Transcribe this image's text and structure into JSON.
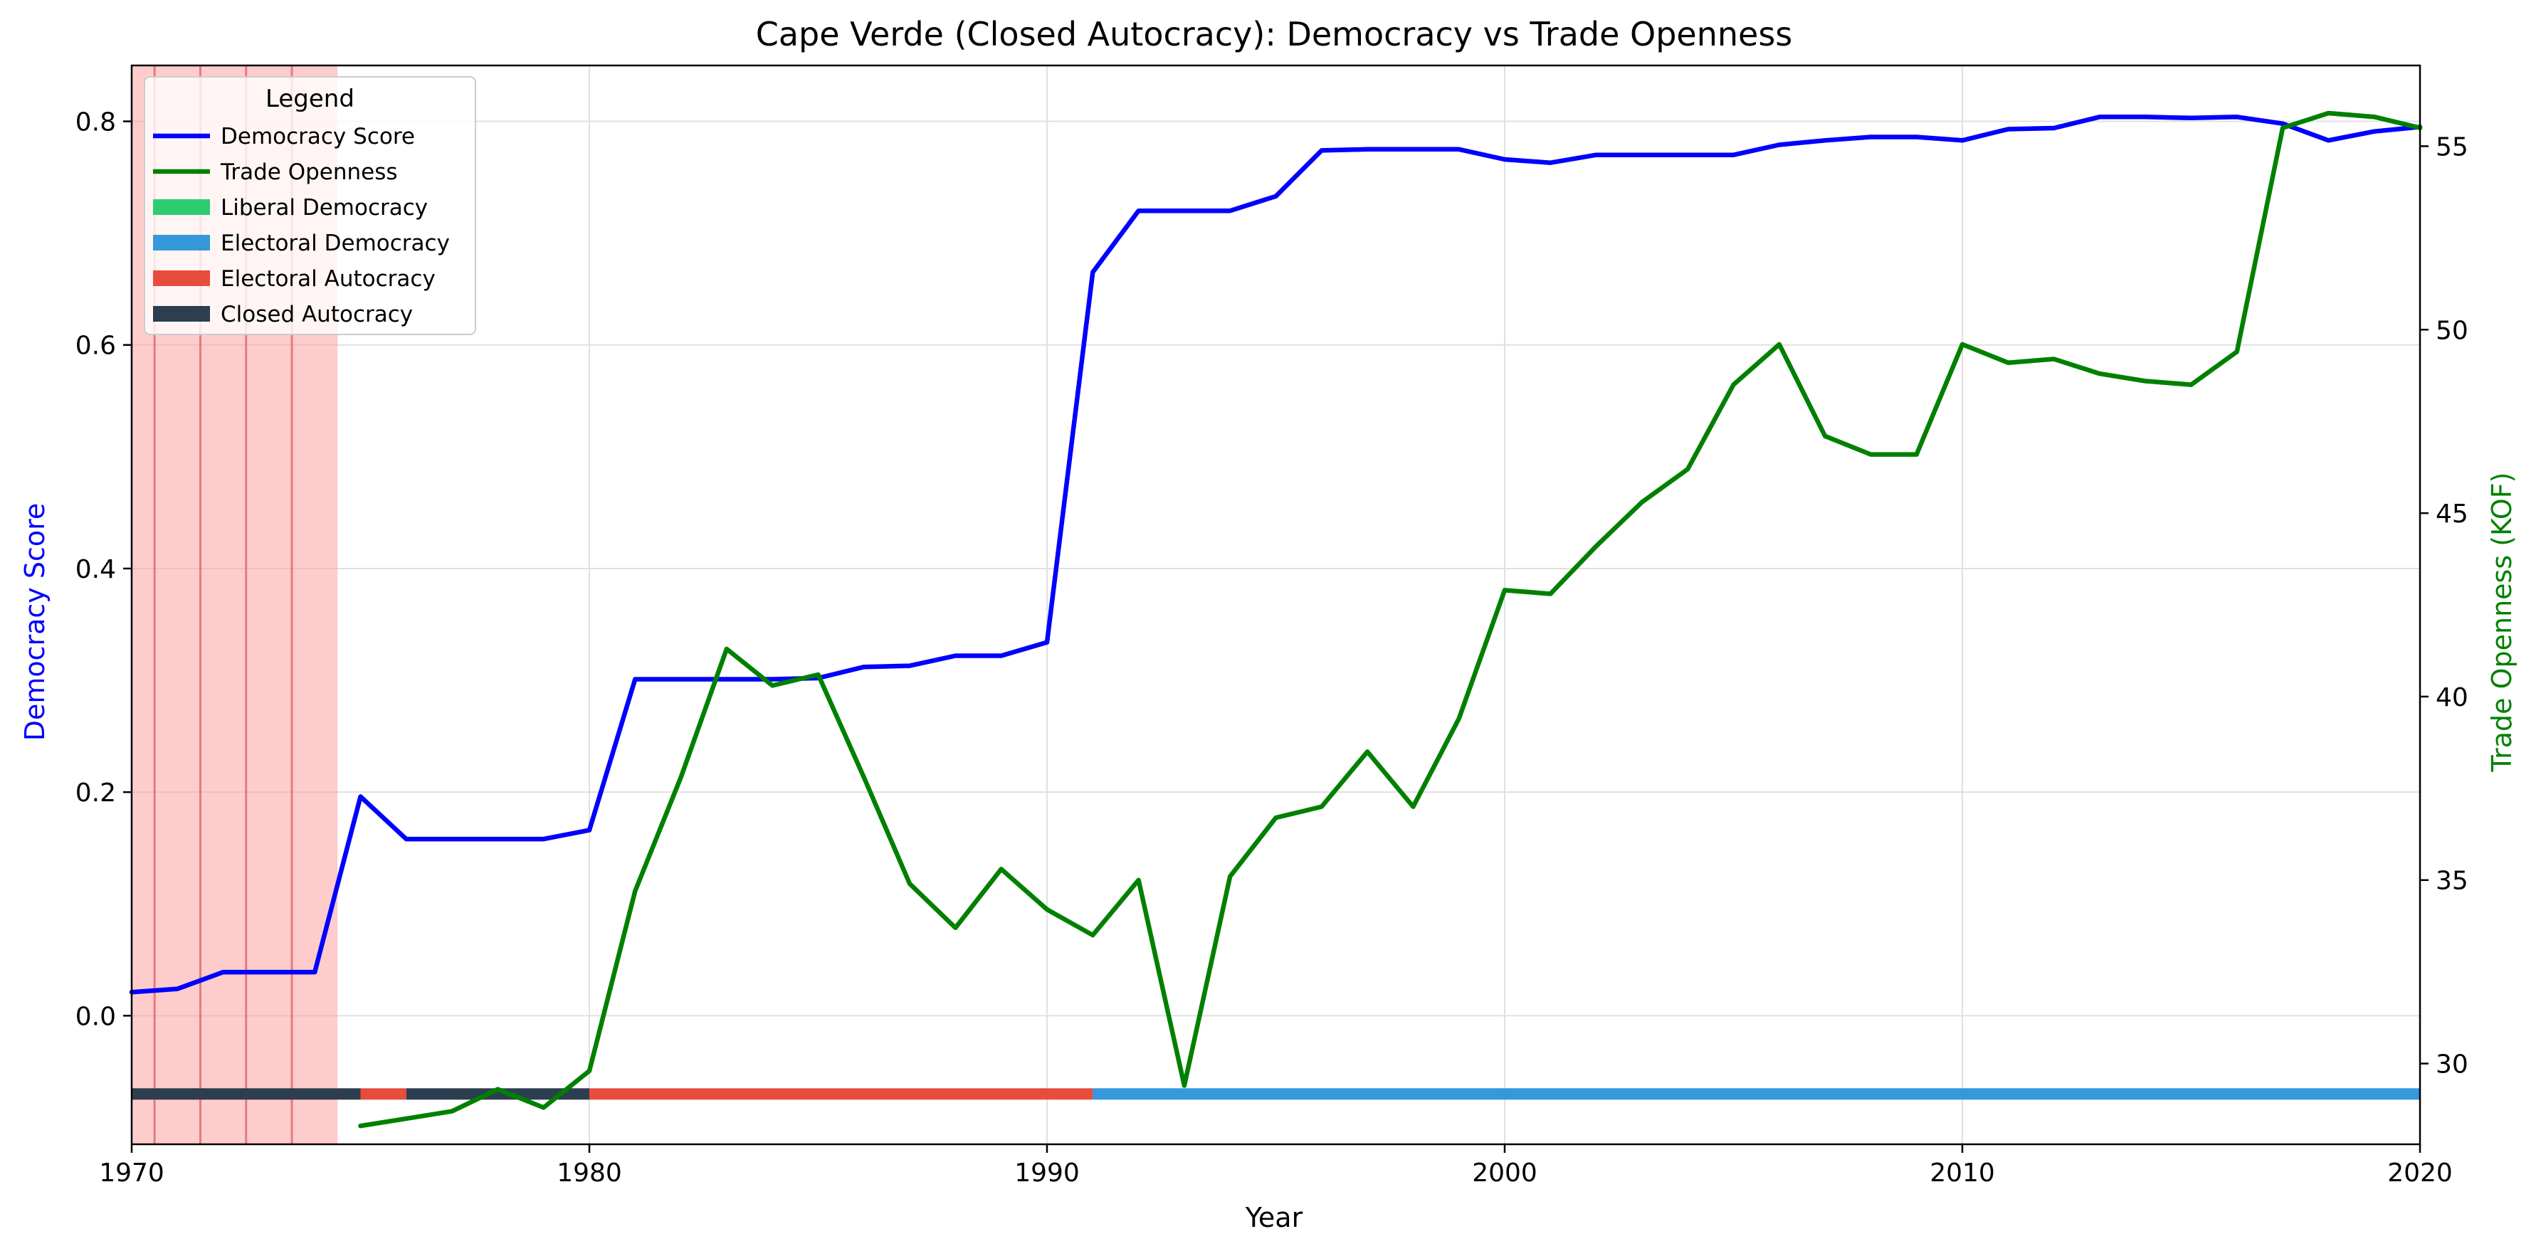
{
  "chart_data": {
    "type": "line",
    "title": "Cape Verde (Closed Autocracy): Democracy vs Trade Openness",
    "xlabel": "Year",
    "ylabel_left": "Democracy Score",
    "ylabel_right": "Trade Openness (KOF)",
    "xlim": [
      1970,
      2020
    ],
    "ylim_left": [
      -0.115,
      0.85
    ],
    "ylim_right": [
      27.8,
      57.2
    ],
    "x_ticks": [
      1970,
      1980,
      1990,
      2000,
      2010,
      2020
    ],
    "y_ticks_left": [
      "0.0",
      "0.2",
      "0.4",
      "0.6",
      "0.8"
    ],
    "y_ticks_left_values": [
      0.0,
      0.2,
      0.4,
      0.6,
      0.8
    ],
    "y_ticks_right": [
      "30",
      "35",
      "40",
      "45",
      "50",
      "55"
    ],
    "y_ticks_right_values": [
      30,
      35,
      40,
      45,
      50,
      55
    ],
    "grid": true,
    "legend_position": "top-left",
    "legend_title": "Legend",
    "series": [
      {
        "name": "Democracy Score",
        "axis": "left",
        "color": "#0000ff",
        "x": [
          1970,
          1971,
          1972,
          1973,
          1974,
          1975,
          1976,
          1977,
          1978,
          1979,
          1980,
          1981,
          1982,
          1983,
          1984,
          1985,
          1986,
          1987,
          1988,
          1989,
          1990,
          1991,
          1992,
          1993,
          1994,
          1995,
          1996,
          1997,
          1998,
          1999,
          2000,
          2001,
          2002,
          2003,
          2004,
          2005,
          2006,
          2007,
          2008,
          2009,
          2010,
          2011,
          2012,
          2013,
          2014,
          2015,
          2016,
          2017,
          2018,
          2019,
          2020
        ],
        "values": [
          0.021,
          0.024,
          0.039,
          0.039,
          0.039,
          0.196,
          0.158,
          0.158,
          0.158,
          0.158,
          0.166,
          0.301,
          0.301,
          0.301,
          0.301,
          0.302,
          0.312,
          0.313,
          0.322,
          0.322,
          0.334,
          0.665,
          0.72,
          0.72,
          0.72,
          0.733,
          0.774,
          0.775,
          0.775,
          0.775,
          0.766,
          0.763,
          0.77,
          0.77,
          0.77,
          0.77,
          0.779,
          0.783,
          0.786,
          0.786,
          0.783,
          0.793,
          0.794,
          0.804,
          0.804,
          0.803,
          0.804,
          0.798,
          0.783,
          0.791,
          0.795
        ]
      },
      {
        "name": "Trade Openness",
        "axis": "right",
        "color": "#008000",
        "x": [
          1975,
          1976,
          1977,
          1978,
          1979,
          1980,
          1981,
          1982,
          1983,
          1984,
          1985,
          1986,
          1987,
          1988,
          1989,
          1990,
          1991,
          1992,
          1993,
          1994,
          1995,
          1996,
          1997,
          1998,
          1999,
          2000,
          2001,
          2002,
          2003,
          2004,
          2005,
          2006,
          2007,
          2008,
          2009,
          2010,
          2011,
          2012,
          2013,
          2014,
          2015,
          2016,
          2017,
          2018,
          2019,
          2020
        ],
        "values": [
          28.3,
          28.5,
          28.7,
          29.3,
          28.8,
          29.8,
          34.7,
          37.8,
          41.3,
          40.3,
          40.6,
          37.8,
          34.9,
          33.7,
          35.3,
          34.2,
          33.5,
          35.0,
          29.4,
          35.1,
          36.7,
          37.0,
          38.5,
          37.0,
          39.4,
          42.9,
          42.8,
          44.1,
          45.3,
          46.2,
          48.5,
          49.6,
          47.1,
          46.6,
          46.6,
          49.6,
          49.1,
          49.2,
          48.8,
          48.6,
          48.5,
          49.4,
          55.5,
          55.9,
          55.8,
          55.5
        ]
      }
    ],
    "regime_legend": [
      {
        "name": "Liberal Democracy",
        "color": "#2ecc71"
      },
      {
        "name": "Electoral Democracy",
        "color": "#3498db"
      },
      {
        "name": "Electoral Autocracy",
        "color": "#e74c3c"
      },
      {
        "name": "Closed Autocracy",
        "color": "#2c3e50"
      }
    ],
    "regime_bar": [
      {
        "start": 1970,
        "end": 1975,
        "color": "#2c3e50"
      },
      {
        "start": 1975,
        "end": 1976,
        "color": "#e74c3c"
      },
      {
        "start": 1976,
        "end": 1980,
        "color": "#2c3e50"
      },
      {
        "start": 1980,
        "end": 1991,
        "color": "#e74c3c"
      },
      {
        "start": 1991,
        "end": 2020,
        "color": "#3498db"
      }
    ],
    "regime_bar_level": -0.07,
    "shaded_span": {
      "start": 1970,
      "end": 1974.5,
      "color": "#ff9999"
    },
    "event_lines": [
      1970.5,
      1971.5,
      1972.5,
      1973.5
    ]
  }
}
